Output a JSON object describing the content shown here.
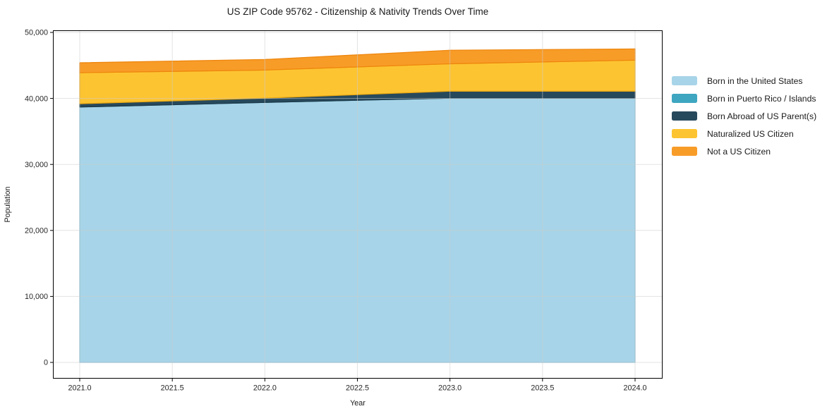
{
  "chart": {
    "title": "US ZIP Code 95762 - Citizenship & Nativity Trends Over Time",
    "xlabel": "Year",
    "ylabel": "Population"
  },
  "chart_data": {
    "type": "area",
    "stacked": true,
    "title": "US ZIP Code 95762 - Citizenship & Nativity Trends Over Time",
    "xlabel": "Year",
    "ylabel": "Population",
    "x": [
      2021,
      2022,
      2023,
      2024
    ],
    "series": [
      {
        "name": "Born in the United States",
        "values": [
          38700,
          39400,
          40050,
          40050
        ],
        "color": "#a7d4e8",
        "edge": "#86bfd8"
      },
      {
        "name": "Born in Puerto Rico / Islands",
        "values": [
          0,
          0,
          0,
          0
        ],
        "color": "#3ea6c0",
        "edge": "#318ba3"
      },
      {
        "name": "Born Abroad of US Parent(s)",
        "values": [
          500,
          650,
          1050,
          1050
        ],
        "color": "#27495c",
        "edge": "#1d3a4a"
      },
      {
        "name": "Naturalized US Citizen",
        "values": [
          4700,
          4250,
          4150,
          4700
        ],
        "color": "#fdc432",
        "edge": "#eaa912"
      },
      {
        "name": "Not a US Citizen",
        "values": [
          1500,
          1600,
          2050,
          1700
        ],
        "color": "#f89c28",
        "edge": "#ee860d"
      }
    ],
    "stack_totals": [
      45400,
      45900,
      47300,
      47500
    ],
    "xlim": [
      2020.855,
      2024.149
    ],
    "ylim": [
      0,
      50000
    ],
    "xticks": [
      2021.0,
      2021.5,
      2022.0,
      2022.5,
      2023.0,
      2023.5,
      2024.0
    ],
    "xtick_labels": [
      "2021.0",
      "2021.5",
      "2022.0",
      "2022.5",
      "2023.0",
      "2023.5",
      "2024.0"
    ],
    "yticks": [
      0,
      10000,
      20000,
      30000,
      40000,
      50000
    ],
    "ytick_labels": [
      "0",
      "10,000",
      "20,000",
      "30,000",
      "40,000",
      "50,000"
    ],
    "grid": true,
    "legend_position": "right-of-plot"
  }
}
